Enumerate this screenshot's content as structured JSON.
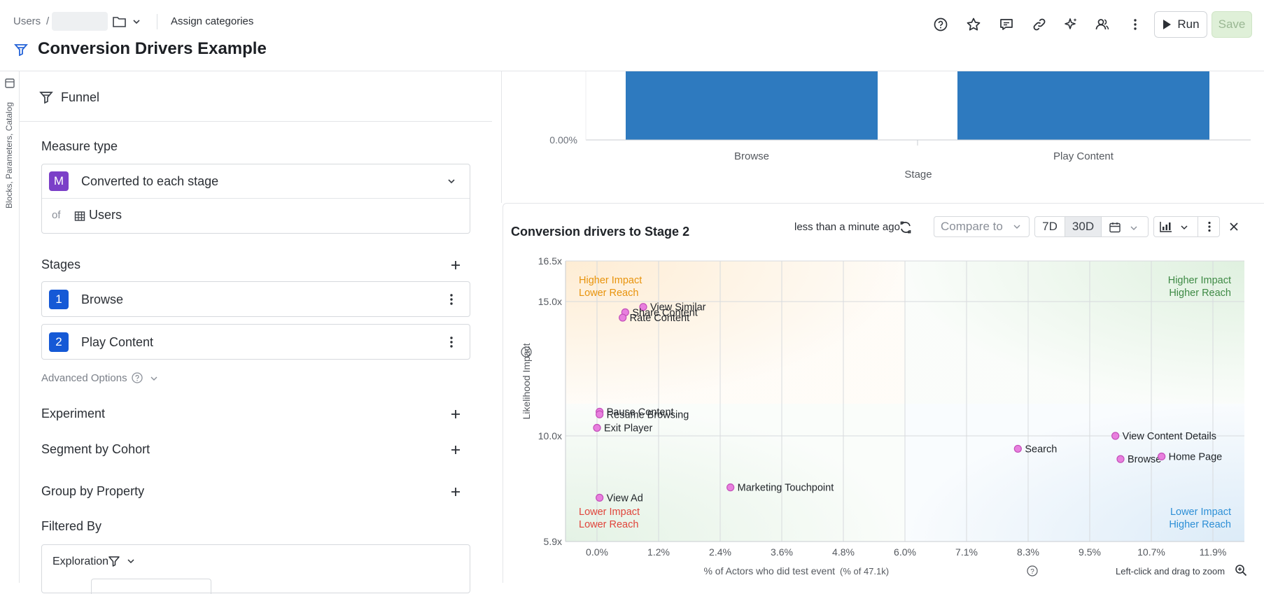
{
  "header": {
    "crumb_users": "Users",
    "crumb_sep": "/",
    "assign_categories": "Assign categories",
    "title": "Conversion Drivers Example",
    "run_label": "Run",
    "save_label": "Save"
  },
  "sidebar_tab": {
    "label": "Blocks, Parameters, Catalog"
  },
  "left": {
    "funnel_label": "Funnel",
    "measure_type_label": "Measure type",
    "measure_badge": "M",
    "measure_value": "Converted to each stage",
    "of_label": "of",
    "of_value": "Users",
    "stages_label": "Stages",
    "stages": [
      {
        "num": "1",
        "name": "Browse"
      },
      {
        "num": "2",
        "name": "Play Content"
      }
    ],
    "advanced_options": "Advanced Options",
    "experiment": "Experiment",
    "segment_by_cohort": "Segment by Cohort",
    "group_by_property": "Group by Property",
    "filtered_by": "Filtered By",
    "exploration": "Exploration"
  },
  "top_chart": {
    "y_tick": "0.00%",
    "categories": [
      "Browse",
      "Play Content"
    ],
    "xlabel": "Stage",
    "bar_color": "#2e7abf"
  },
  "drivers": {
    "title": "Conversion drivers to Stage 2",
    "updated": "less than a minute ago",
    "compare_placeholder": "Compare to",
    "range_7d": "7D",
    "range_30d": "30D",
    "zoom_hint": "Left-click and drag to zoom"
  },
  "chart_data": {
    "type": "scatter",
    "title": "Conversion drivers to Stage 2",
    "xlabel": "% of Actors who did test event",
    "xlabel_suffix": "(% of 47.1k)",
    "ylabel": "Likelihood Impact",
    "x_ticks": [
      "0.0%",
      "1.2%",
      "2.4%",
      "3.6%",
      "4.8%",
      "6.0%",
      "7.1%",
      "8.3%",
      "9.5%",
      "10.7%",
      "11.9%"
    ],
    "y_ticks": [
      "5.9x",
      "10.0x",
      "15.0x",
      "16.5x"
    ],
    "xlim": [
      -0.6,
      12.6
    ],
    "ylim": [
      5.9,
      16.5
    ],
    "point_color": "#e87fde",
    "quadrants": [
      {
        "line1": "Higher Impact",
        "line2": "Lower Reach",
        "color": "#e8930c",
        "position": "top-left"
      },
      {
        "line1": "Higher Impact",
        "line2": "Higher Reach",
        "color": "#3e8a45",
        "position": "top-right"
      },
      {
        "line1": "Lower Impact",
        "line2": "Lower Reach",
        "color": "#e0443b",
        "position": "bottom-left"
      },
      {
        "line1": "Lower Impact",
        "line2": "Higher Reach",
        "color": "#2d8fd6",
        "position": "bottom-right"
      }
    ],
    "points": [
      {
        "label": "View Similar",
        "x": 0.9,
        "y": 14.8
      },
      {
        "label": "Share Content",
        "x": 0.55,
        "y": 14.6
      },
      {
        "label": "Rate Content",
        "x": 0.5,
        "y": 14.4
      },
      {
        "label": "Pause Content",
        "x": 0.05,
        "y": 10.9
      },
      {
        "label": "Resume Browsing",
        "x": 0.05,
        "y": 10.8
      },
      {
        "label": "Exit Player",
        "x": 0.0,
        "y": 10.3
      },
      {
        "label": "View Ad",
        "x": 0.05,
        "y": 7.6
      },
      {
        "label": "Marketing Touchpoint",
        "x": 2.6,
        "y": 8.0
      },
      {
        "label": "Search",
        "x": 8.1,
        "y": 9.5
      },
      {
        "label": "View Content Details",
        "x": 10.0,
        "y": 10.0
      },
      {
        "label": "Browse",
        "x": 10.1,
        "y": 9.1
      },
      {
        "label": "Home Page",
        "x": 10.9,
        "y": 9.2
      }
    ]
  }
}
